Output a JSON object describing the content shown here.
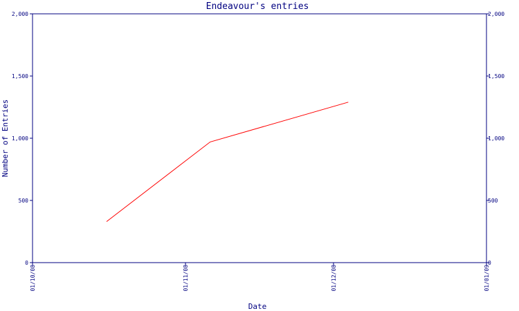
{
  "chart_data": {
    "type": "line",
    "title": "Endeavour's entries",
    "xlabel": "Date",
    "ylabel": "Number of Entries",
    "x_ticks": [
      "01/10/08",
      "01/11/08",
      "01/12/08",
      "01/01/09"
    ],
    "y_ticks": [
      "0",
      "500",
      "1,000",
      "1,500",
      "2,000"
    ],
    "ylim": [
      0,
      2000
    ],
    "xlim": [
      "2008-10-01",
      "2009-01-01"
    ],
    "grid": false,
    "secondary_y_axis": true,
    "series": [
      {
        "color": "#ff0000",
        "x": [
          "2008-10-16",
          "2008-11-06",
          "2008-12-04"
        ],
        "y": [
          330,
          970,
          1290
        ]
      }
    ]
  }
}
